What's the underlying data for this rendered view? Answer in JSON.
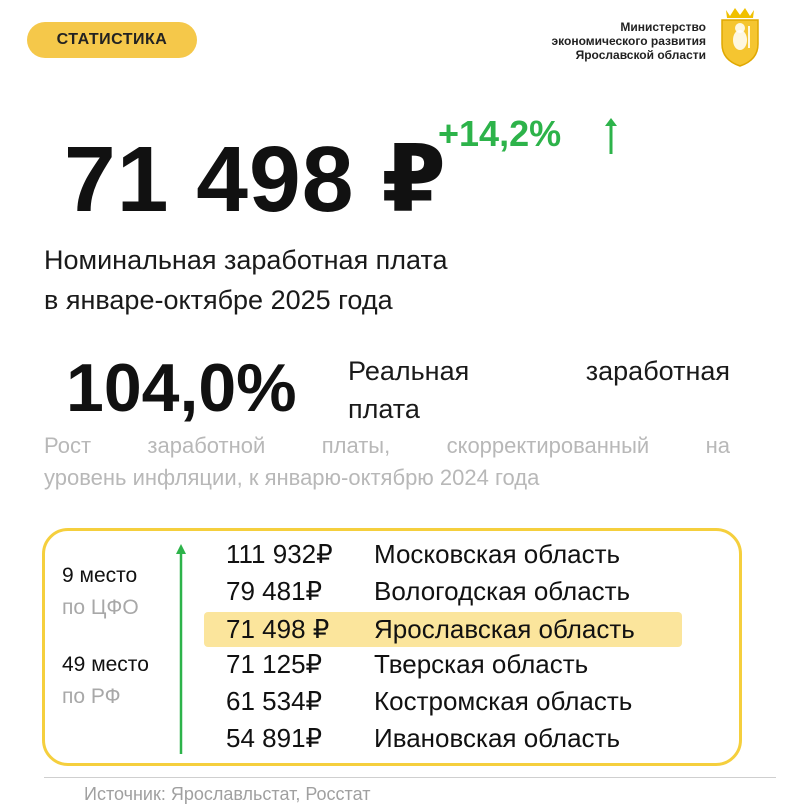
{
  "tag": "СТАТИСТИКА",
  "ministry": {
    "lines": [
      "Министерство",
      "экономического развития",
      "Ярославской области"
    ]
  },
  "headline": {
    "value": "71 498 ₽",
    "growth": "+14,2%",
    "label_lines": [
      "Номинальная заработная плата",
      "в январе-октябре 2025 года"
    ]
  },
  "real_wage": {
    "value": "104,0%",
    "label_words": [
      "Реальная",
      "заработная"
    ],
    "label_line2": "плата"
  },
  "note": {
    "line1_words": [
      "Рост",
      "заработной",
      "платы,",
      "скорректированный",
      "на"
    ],
    "line2": "уровень инфляции, к январю-октябрю 2024 года"
  },
  "places": [
    {
      "rank": "9 место",
      "scope": "по ЦФО"
    },
    {
      "rank": "49 место",
      "scope": "по РФ"
    }
  ],
  "ranking": [
    {
      "amount": "111 932₽",
      "region": "Московская область"
    },
    {
      "amount": "79 481₽",
      "region": "Вологодская область"
    },
    {
      "amount": "71 498 ₽",
      "region": "Ярославская область"
    },
    {
      "amount": "71 125₽",
      "region": "Тверская область"
    },
    {
      "amount": "61 534₽",
      "region": "Костромская область"
    },
    {
      "amount": "54 891₽",
      "region": "Ивановская область"
    }
  ],
  "highlighted_region": "Ярославская область",
  "source": "Источник: Ярославльстат, Росстат",
  "colors": {
    "accent_yellow": "#f5c84a",
    "growth_green": "#2db34a",
    "highlight": "#fbe59c",
    "muted_text": "#b8b8b8"
  }
}
